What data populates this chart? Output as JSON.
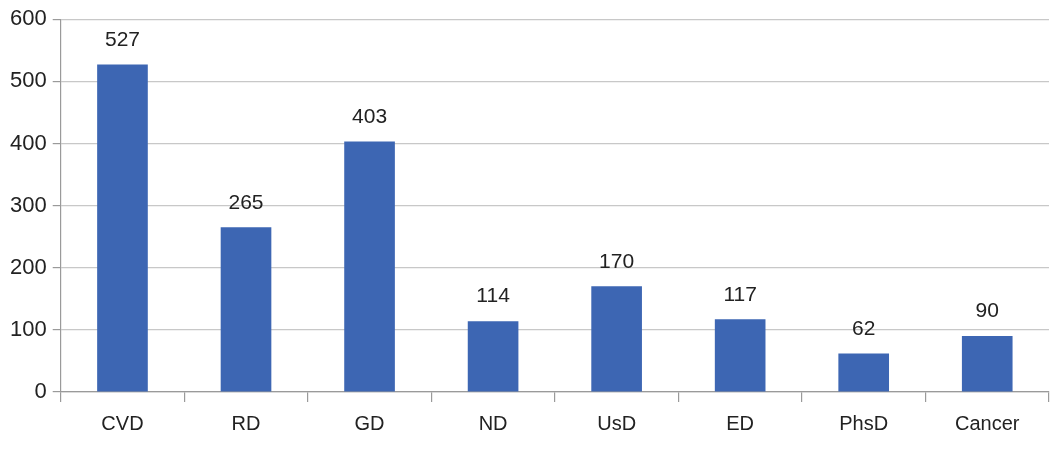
{
  "chart_data": {
    "type": "bar",
    "categories": [
      "CVD",
      "RD",
      "GD",
      "ND",
      "UsD",
      "ED",
      "PhsD",
      "Cancer"
    ],
    "values": [
      527,
      265,
      403,
      114,
      170,
      117,
      62,
      90
    ],
    "color": "#3d66b3",
    "ylim": [
      0,
      600
    ],
    "yticks": [
      0,
      100,
      200,
      300,
      400,
      500,
      600
    ],
    "grid": "y",
    "legend": false,
    "data_labels": true
  }
}
